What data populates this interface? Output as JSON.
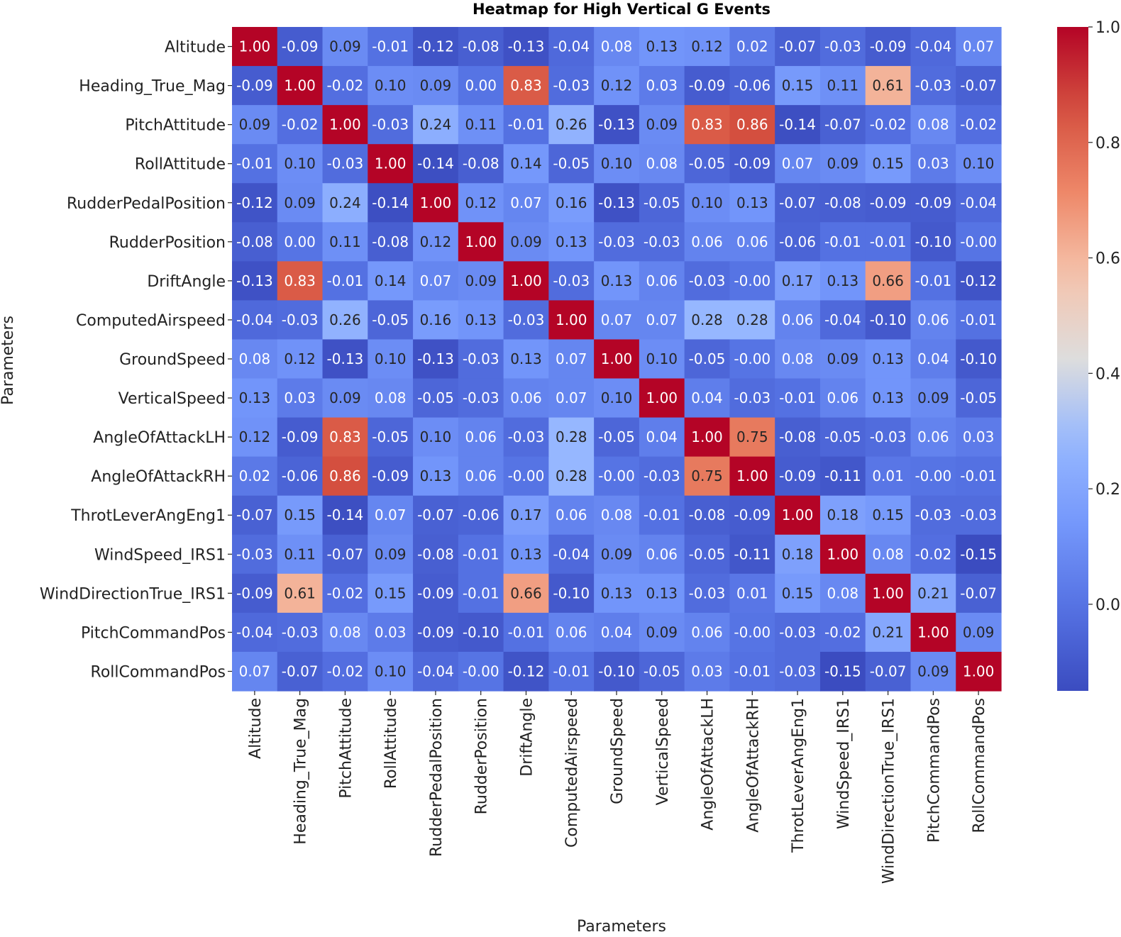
{
  "chart_data": {
    "type": "heatmap",
    "title": "Heatmap for High Vertical G Events",
    "xlabel": "Parameters",
    "ylabel": "Parameters",
    "labels": [
      "Altitude",
      "Heading_True_Mag",
      "PitchAttitude",
      "RollAttitude",
      "RudderPedalPosition",
      "RudderPosition",
      "DriftAngle",
      "ComputedAirspeed",
      "GroundSpeed",
      "VerticalSpeed",
      "AngleOfAttackLH",
      "AngleOfAttackRH",
      "ThrotLeverAngEng1",
      "WindSpeed_IRS1",
      "WindDirectionTrue_IRS1",
      "PitchCommandPos",
      "RollCommandPos"
    ],
    "values": [
      [
        "1.00",
        "-0.09",
        "0.09",
        "-0.01",
        "-0.12",
        "-0.08",
        "-0.13",
        "-0.04",
        "0.08",
        "0.13",
        "0.12",
        "0.02",
        "-0.07",
        "-0.03",
        "-0.09",
        "-0.04",
        "0.07"
      ],
      [
        "-0.09",
        "1.00",
        "-0.02",
        "0.10",
        "0.09",
        "0.00",
        "0.83",
        "-0.03",
        "0.12",
        "0.03",
        "-0.09",
        "-0.06",
        "0.15",
        "0.11",
        "0.61",
        "-0.03",
        "-0.07"
      ],
      [
        "0.09",
        "-0.02",
        "1.00",
        "-0.03",
        "0.24",
        "0.11",
        "-0.01",
        "0.26",
        "-0.13",
        "0.09",
        "0.83",
        "0.86",
        "-0.14",
        "-0.07",
        "-0.02",
        "0.08",
        "-0.02"
      ],
      [
        "-0.01",
        "0.10",
        "-0.03",
        "1.00",
        "-0.14",
        "-0.08",
        "0.14",
        "-0.05",
        "0.10",
        "0.08",
        "-0.05",
        "-0.09",
        "0.07",
        "0.09",
        "0.15",
        "0.03",
        "0.10"
      ],
      [
        "-0.12",
        "0.09",
        "0.24",
        "-0.14",
        "1.00",
        "0.12",
        "0.07",
        "0.16",
        "-0.13",
        "-0.05",
        "0.10",
        "0.13",
        "-0.07",
        "-0.08",
        "-0.09",
        "-0.09",
        "-0.04"
      ],
      [
        "-0.08",
        "0.00",
        "0.11",
        "-0.08",
        "0.12",
        "1.00",
        "0.09",
        "0.13",
        "-0.03",
        "-0.03",
        "0.06",
        "0.06",
        "-0.06",
        "-0.01",
        "-0.01",
        "-0.10",
        "-0.00"
      ],
      [
        "-0.13",
        "0.83",
        "-0.01",
        "0.14",
        "0.07",
        "0.09",
        "1.00",
        "-0.03",
        "0.13",
        "0.06",
        "-0.03",
        "-0.00",
        "0.17",
        "0.13",
        "0.66",
        "-0.01",
        "-0.12"
      ],
      [
        "-0.04",
        "-0.03",
        "0.26",
        "-0.05",
        "0.16",
        "0.13",
        "-0.03",
        "1.00",
        "0.07",
        "0.07",
        "0.28",
        "0.28",
        "0.06",
        "-0.04",
        "-0.10",
        "0.06",
        "-0.01"
      ],
      [
        "0.08",
        "0.12",
        "-0.13",
        "0.10",
        "-0.13",
        "-0.03",
        "0.13",
        "0.07",
        "1.00",
        "0.10",
        "-0.05",
        "-0.00",
        "0.08",
        "0.09",
        "0.13",
        "0.04",
        "-0.10"
      ],
      [
        "0.13",
        "0.03",
        "0.09",
        "0.08",
        "-0.05",
        "-0.03",
        "0.06",
        "0.07",
        "0.10",
        "1.00",
        "0.04",
        "-0.03",
        "-0.01",
        "0.06",
        "0.13",
        "0.09",
        "-0.05"
      ],
      [
        "0.12",
        "-0.09",
        "0.83",
        "-0.05",
        "0.10",
        "0.06",
        "-0.03",
        "0.28",
        "-0.05",
        "0.04",
        "1.00",
        "0.75",
        "-0.08",
        "-0.05",
        "-0.03",
        "0.06",
        "0.03"
      ],
      [
        "0.02",
        "-0.06",
        "0.86",
        "-0.09",
        "0.13",
        "0.06",
        "-0.00",
        "0.28",
        "-0.00",
        "-0.03",
        "0.75",
        "1.00",
        "-0.09",
        "-0.11",
        "0.01",
        "-0.00",
        "-0.01"
      ],
      [
        "-0.07",
        "0.15",
        "-0.14",
        "0.07",
        "-0.07",
        "-0.06",
        "0.17",
        "0.06",
        "0.08",
        "-0.01",
        "-0.08",
        "-0.09",
        "1.00",
        "0.18",
        "0.15",
        "-0.03",
        "-0.03"
      ],
      [
        "-0.03",
        "0.11",
        "-0.07",
        "0.09",
        "-0.08",
        "-0.01",
        "0.13",
        "-0.04",
        "0.09",
        "0.06",
        "-0.05",
        "-0.11",
        "0.18",
        "1.00",
        "0.08",
        "-0.02",
        "-0.15"
      ],
      [
        "-0.09",
        "0.61",
        "-0.02",
        "0.15",
        "-0.09",
        "-0.01",
        "0.66",
        "-0.10",
        "0.13",
        "0.13",
        "-0.03",
        "0.01",
        "0.15",
        "0.08",
        "1.00",
        "0.21",
        "-0.07"
      ],
      [
        "-0.04",
        "-0.03",
        "0.08",
        "0.03",
        "-0.09",
        "-0.10",
        "-0.01",
        "0.06",
        "0.04",
        "0.09",
        "0.06",
        "-0.00",
        "-0.03",
        "-0.02",
        "0.21",
        "1.00",
        "0.09"
      ],
      [
        "0.07",
        "-0.07",
        "-0.02",
        "0.10",
        "-0.04",
        "-0.00",
        "-0.12",
        "-0.01",
        "-0.10",
        "-0.05",
        "0.03",
        "-0.01",
        "-0.03",
        "-0.15",
        "-0.07",
        "0.09",
        "1.00"
      ]
    ],
    "colormap": "coolwarm",
    "vmin": -0.15,
    "vmax": 1.0,
    "colorbar_ticks": [
      "0.0",
      "0.2",
      "0.4",
      "0.6",
      "0.8",
      "1.0"
    ]
  }
}
